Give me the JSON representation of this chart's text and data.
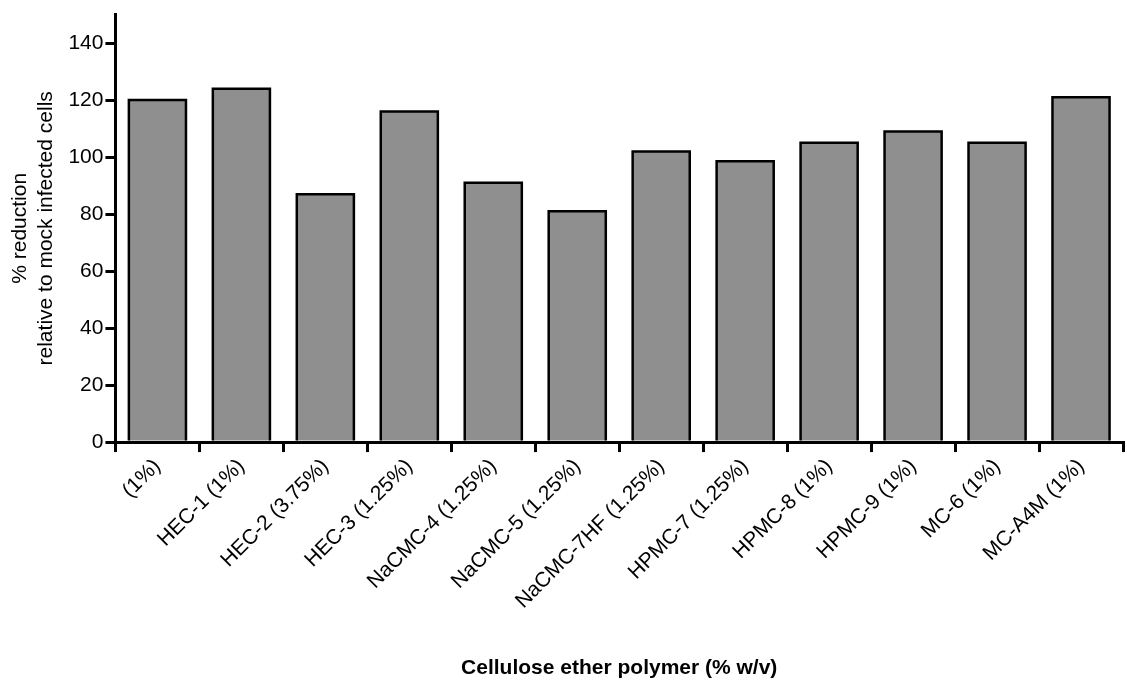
{
  "chart_data": {
    "type": "bar",
    "xlabel": "Cellulose ether polymer (% w/v)",
    "ylabel": "% reduction\nrelative to mock infected cells",
    "categories": [
      "(1%)",
      "HEC-1 (1%)",
      "HEC-2 (3.75%)",
      "HEC-3 (1.25%)",
      "NaCMC-4 (1.25%)",
      "NaCMC-5 (1.25%)",
      "NaCMC-7HF (1.25%)",
      "HPMC-7 (1.25%)",
      "HPMC-8 (1%)",
      "HPMC-9 (1%)",
      "MC-6 (1%)",
      "MC-A4M (1%)"
    ],
    "values": [
      120,
      124,
      87,
      116,
      91,
      81,
      102,
      98.5,
      105,
      109,
      105,
      121
    ],
    "color": "#8f8f8f",
    "ylim": [
      0,
      150
    ],
    "yticks": [
      0,
      20,
      40,
      60,
      80,
      100,
      120,
      140
    ],
    "grid": false,
    "legend": false
  }
}
